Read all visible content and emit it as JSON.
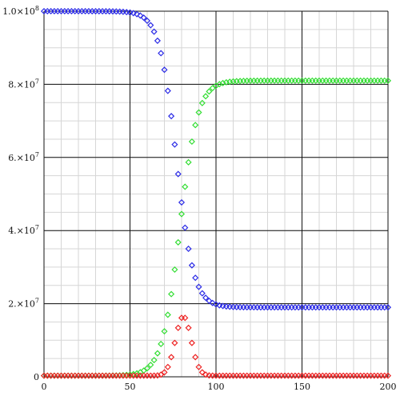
{
  "chart_data": {
    "type": "scatter",
    "title": "",
    "xlabel": "",
    "ylabel": "",
    "xlim": [
      0,
      200
    ],
    "ylim": [
      0,
      100000000
    ],
    "grid": true,
    "x_ticks": [
      {
        "value": 0,
        "label": "0"
      },
      {
        "value": 50,
        "label": "50"
      },
      {
        "value": 100,
        "label": "100"
      },
      {
        "value": 150,
        "label": "150"
      },
      {
        "value": 200,
        "label": "200"
      }
    ],
    "y_ticks": [
      {
        "value": 0,
        "label": "0",
        "exp": ""
      },
      {
        "value": 20000000,
        "label": "2.×10",
        "exp": "7"
      },
      {
        "value": 40000000,
        "label": "4.×10",
        "exp": "7"
      },
      {
        "value": 60000000,
        "label": "6.×10",
        "exp": "7"
      },
      {
        "value": 80000000,
        "label": "8.×10",
        "exp": "7"
      },
      {
        "value": 100000000,
        "label": "1.0×10",
        "exp": "8"
      }
    ],
    "sample_step": 2,
    "series": [
      {
        "color": "#2a2ae6",
        "marker": "diamond-open",
        "model": {
          "kind": "logistic_down",
          "high": 100000000,
          "low": 19000000,
          "mid": 77,
          "scale": 5
        }
      },
      {
        "color": "#33dd33",
        "marker": "diamond-open",
        "model": {
          "kind": "logistic_up",
          "low": 300000,
          "high": 81000000,
          "mid": 79,
          "scale": 5.2
        }
      },
      {
        "color": "#ee2222",
        "marker": "diamond-open",
        "model": {
          "kind": "peak",
          "base": 300000,
          "peak": 16500000,
          "center": 81,
          "width": 6.5
        }
      }
    ]
  }
}
